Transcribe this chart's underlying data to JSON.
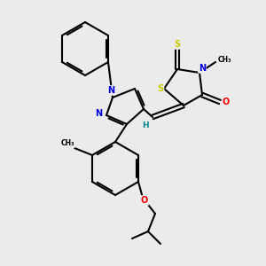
{
  "bg_color": "#ebebeb",
  "bond_lw": 1.5,
  "atom_colors": {
    "S": "#cccc00",
    "N": "#0000dd",
    "O": "#ee0000",
    "H": "#008888",
    "C": "#000000"
  },
  "figsize": [
    3.0,
    3.0
  ],
  "dpi": 100
}
